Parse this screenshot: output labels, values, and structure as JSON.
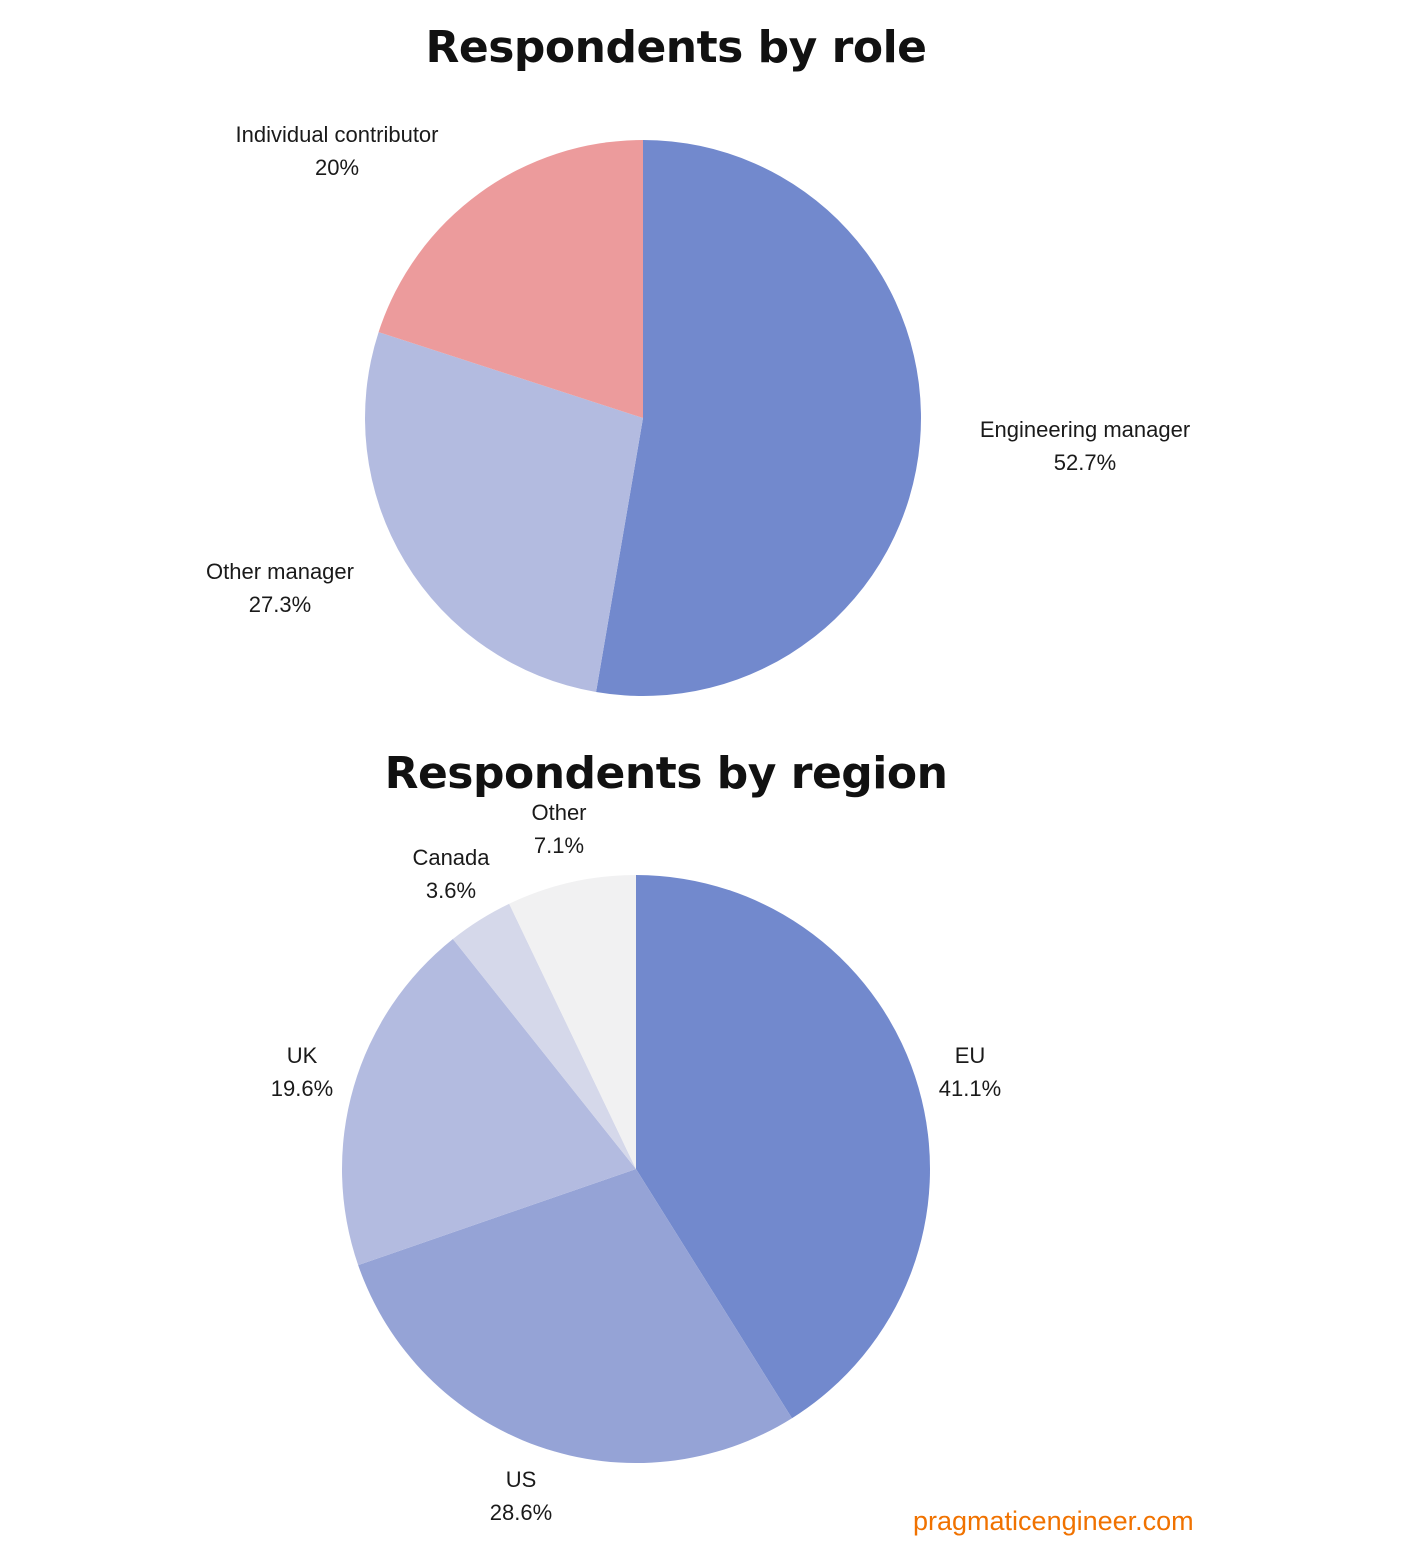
{
  "chart_data": [
    {
      "type": "pie",
      "title": "Respondents by role",
      "slices": [
        {
          "label": "Engineering manager",
          "value": 52.7,
          "display": "52.7%",
          "color": "#7289cd"
        },
        {
          "label": "Other manager",
          "value": 27.3,
          "display": "27.3%",
          "color": "#b3bbe0"
        },
        {
          "label": "Individual contributor",
          "value": 20,
          "display": "20%",
          "color": "#ec9b9c"
        }
      ],
      "start": "12 o'clock",
      "direction": "clockwise",
      "legend": "none (direct labels)"
    },
    {
      "type": "pie",
      "title": "Respondents by region",
      "slices": [
        {
          "label": "EU",
          "value": 41.1,
          "display": "41.1%",
          "color": "#7289cd"
        },
        {
          "label": "US",
          "value": 28.6,
          "display": "28.6%",
          "color": "#95a3d6"
        },
        {
          "label": "UK",
          "value": 19.6,
          "display": "19.6%",
          "color": "#b3bbe0"
        },
        {
          "label": "Canada",
          "value": 3.6,
          "display": "3.6%",
          "color": "#d5d8ea"
        },
        {
          "label": "Other",
          "value": 7.1,
          "display": "7.1%",
          "color": "#f1f1f2"
        }
      ],
      "start": "12 o'clock",
      "direction": "clockwise",
      "legend": "none (direct labels)"
    }
  ],
  "footer": {
    "site": "pragmaticengineer.com",
    "color": "#f07200"
  }
}
